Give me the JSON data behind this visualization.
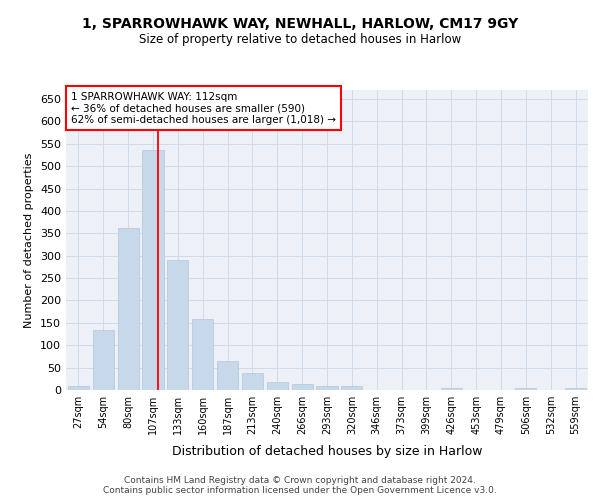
{
  "title1": "1, SPARROWHAWK WAY, NEWHALL, HARLOW, CM17 9GY",
  "title2": "Size of property relative to detached houses in Harlow",
  "xlabel": "Distribution of detached houses by size in Harlow",
  "ylabel": "Number of detached properties",
  "bar_color": "#c8d8eb",
  "bar_edge_color": "#b0c8dc",
  "categories": [
    "27sqm",
    "54sqm",
    "80sqm",
    "107sqm",
    "133sqm",
    "160sqm",
    "187sqm",
    "213sqm",
    "240sqm",
    "266sqm",
    "293sqm",
    "320sqm",
    "346sqm",
    "373sqm",
    "399sqm",
    "426sqm",
    "453sqm",
    "479sqm",
    "506sqm",
    "532sqm",
    "559sqm"
  ],
  "values": [
    10,
    133,
    362,
    537,
    291,
    158,
    65,
    38,
    17,
    14,
    9,
    8,
    0,
    0,
    0,
    5,
    0,
    0,
    5,
    0,
    5
  ],
  "property_line_label": "1 SPARROWHAWK WAY: 112sqm",
  "annotation_line1": "← 36% of detached houses are smaller (590)",
  "annotation_line2": "62% of semi-detached houses are larger (1,018) →",
  "ylim": [
    0,
    670
  ],
  "yticks": [
    0,
    50,
    100,
    150,
    200,
    250,
    300,
    350,
    400,
    450,
    500,
    550,
    600,
    650
  ],
  "footer1": "Contains HM Land Registry data © Crown copyright and database right 2024.",
  "footer2": "Contains public sector information licensed under the Open Government Licence v3.0.",
  "grid_color": "#d0dae8",
  "background_color": "#edf1f7"
}
